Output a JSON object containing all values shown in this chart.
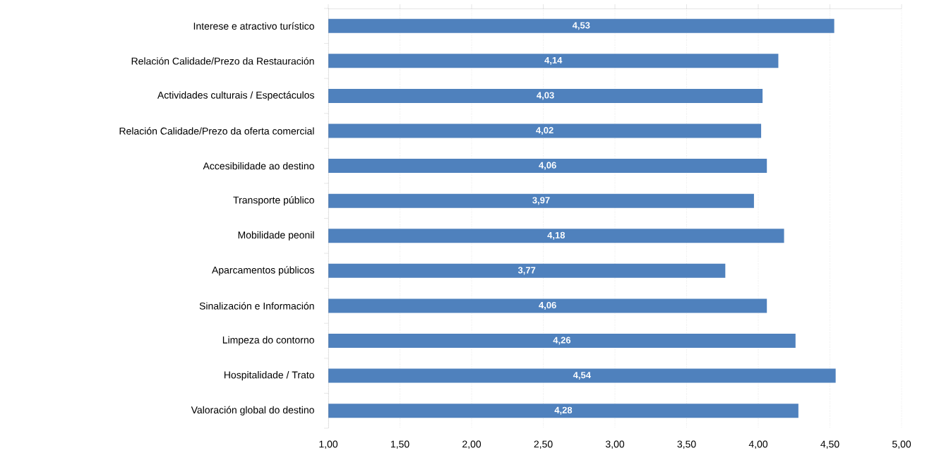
{
  "chart_data": {
    "type": "bar",
    "orientation": "horizontal",
    "categories": [
      "Interese e atractivo turístico",
      "Relación Calidade/Prezo da Restauración",
      "Actividades culturais / Espectáculos",
      "Relación Calidade/Prezo da oferta comercial",
      "Accesibilidade ao destino",
      "Transporte público",
      "Mobilidade peonil",
      "Aparcamentos públicos",
      "Sinalización e Información",
      "Limpeza do contorno",
      "Hospitalidade / Trato",
      "Valoración global do destino"
    ],
    "values": [
      4.53,
      4.14,
      4.03,
      4.02,
      4.06,
      3.97,
      4.18,
      3.77,
      4.06,
      4.26,
      4.54,
      4.28
    ],
    "value_labels": [
      "4,53",
      "4,14",
      "4,03",
      "4,02",
      "4,06",
      "3,97",
      "4,18",
      "3,77",
      "4,06",
      "4,26",
      "4,54",
      "4,28"
    ],
    "color": "#4f81bd",
    "xlim": [
      1,
      5
    ],
    "xticks": [
      {
        "value": 1,
        "label": "1,00"
      },
      {
        "value": 1.5,
        "label": "1,50"
      },
      {
        "value": 2,
        "label": "2,00"
      },
      {
        "value": 2.5,
        "label": "2,50"
      },
      {
        "value": 3,
        "label": "3,00"
      },
      {
        "value": 3.5,
        "label": "3,50"
      },
      {
        "value": 4,
        "label": "4,00"
      },
      {
        "value": 4.5,
        "label": "4,50"
      },
      {
        "value": 5,
        "label": "5,00"
      }
    ],
    "grid": "x"
  }
}
